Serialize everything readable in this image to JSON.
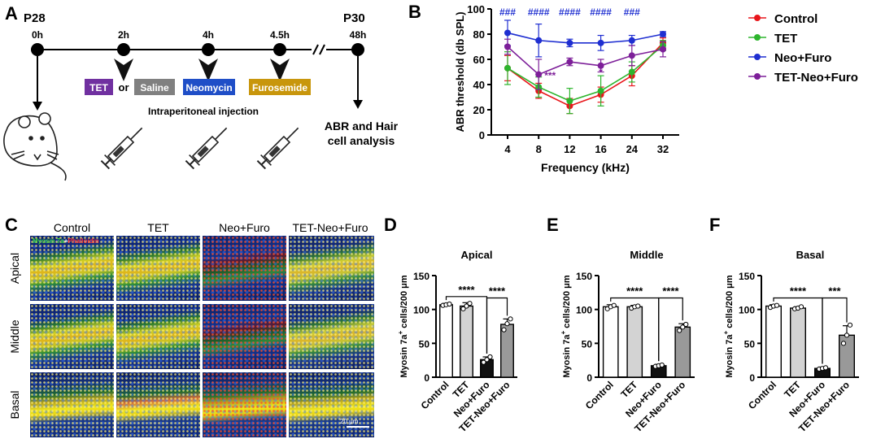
{
  "panel_labels": {
    "A": "A",
    "B": "B",
    "C": "C",
    "D": "D",
    "E": "E",
    "F": "F"
  },
  "timeline": {
    "start_label": "P28",
    "end_label": "P30",
    "timepoints": [
      "0h",
      "2h",
      "4h",
      "4.5h",
      "48h"
    ],
    "drugs": {
      "tet": "TET",
      "or": "or",
      "saline": "Saline",
      "neomycin": "Neomycin",
      "furosemide": "Furosemide"
    },
    "injection_label": "Intraperitoneal injection",
    "analysis_line1": "ABR and Hair",
    "analysis_line2": "cell analysis",
    "colors": {
      "tet": "#7030a0",
      "saline": "#808080",
      "neomycin": "#1f4ec7",
      "furosemide": "#c8960c"
    }
  },
  "micrographs": {
    "columns": [
      "Control",
      "TET",
      "Neo+Furo",
      "TET-Neo+Furo"
    ],
    "rows": [
      "Apical",
      "Middle",
      "Basal"
    ],
    "stain_green": "Myosin 7a",
    "stain_plus": "+",
    "stain_red": "Phalloidin",
    "scale_bar": "20 μm"
  },
  "chart_data": [
    {
      "panel": "B",
      "type": "line",
      "title": "",
      "xlabel": "Frequency (kHz)",
      "ylabel": "ABR threshold (db SPL)",
      "categories": [
        "4",
        "8",
        "12",
        "16",
        "24",
        "32"
      ],
      "ylim": [
        0,
        100
      ],
      "yticks": [
        "0",
        "20",
        "40",
        "60",
        "80",
        "100"
      ],
      "legend_position": "right",
      "series": [
        {
          "name": "Control",
          "color": "#e8161b",
          "values": [
            53,
            35,
            23,
            32,
            47,
            73
          ],
          "errors": [
            10,
            6,
            6,
            6,
            8,
            4
          ]
        },
        {
          "name": "TET",
          "color": "#2db52d",
          "values": [
            53,
            38,
            27,
            35,
            50,
            71
          ],
          "errors": [
            13,
            8,
            10,
            12,
            8,
            4
          ]
        },
        {
          "name": "Neo+Furo",
          "color": "#1f2fd1",
          "values": [
            81,
            75,
            73,
            73,
            75,
            80
          ],
          "errors": [
            10,
            13,
            3,
            6,
            4,
            2
          ]
        },
        {
          "name": "TET-Neo+Furo",
          "color": "#7d1f99",
          "values": [
            70,
            48,
            58,
            55,
            63,
            68
          ],
          "errors": [
            6,
            12,
            3,
            5,
            8,
            6
          ]
        }
      ],
      "annotations_top": [
        "###",
        "####",
        "####",
        "####",
        "###"
      ],
      "annotations_top_x": [
        "4",
        "8",
        "12",
        "16",
        "24"
      ],
      "annotations_mid": [
        {
          "x": "8",
          "text": "***"
        },
        {
          "x": "16",
          "text": "*"
        }
      ]
    },
    {
      "panel": "D",
      "type": "bar",
      "title": "Apical",
      "ylabel_prefix": "Myosin 7a",
      "ylabel_sup": "+",
      "ylabel_suffix": " cells/200 μm",
      "categories": [
        "Control",
        "TET",
        "Neo+Furo",
        "TET-Neo+Furo"
      ],
      "values": [
        107,
        105,
        26,
        78
      ],
      "errors": [
        2,
        5,
        4,
        8
      ],
      "points": [
        [
          106,
          107,
          108
        ],
        [
          101,
          105,
          109
        ],
        [
          22,
          26,
          30
        ],
        [
          70,
          79,
          86
        ]
      ],
      "bar_colors": [
        "#ffffff",
        "#d3d3d3",
        "#111111",
        "#999999"
      ],
      "ylim": [
        0,
        150
      ],
      "yticks": [
        "0",
        "50",
        "100",
        "150"
      ],
      "significance": [
        "****",
        "****"
      ]
    },
    {
      "panel": "E",
      "type": "bar",
      "title": "Middle",
      "ylabel_prefix": "Myosin 7a",
      "ylabel_sup": "+",
      "ylabel_suffix": " cells/200 μm",
      "categories": [
        "Control",
        "TET",
        "Neo+Furo",
        "TET-Neo+Furo"
      ],
      "values": [
        104,
        104,
        17,
        74
      ],
      "errors": [
        3,
        2,
        2,
        5
      ],
      "points": [
        [
          101,
          104,
          106
        ],
        [
          102,
          104,
          105
        ],
        [
          16,
          17,
          18
        ],
        [
          69,
          74,
          78
        ]
      ],
      "bar_colors": [
        "#ffffff",
        "#d3d3d3",
        "#111111",
        "#999999"
      ],
      "ylim": [
        0,
        150
      ],
      "yticks": [
        "0",
        "50",
        "100",
        "150"
      ],
      "significance": [
        "****",
        "****"
      ]
    },
    {
      "panel": "F",
      "type": "bar",
      "title": "Basal",
      "ylabel_prefix": "Myosin 7a",
      "ylabel_sup": "+",
      "ylabel_suffix": " cells/200 μm",
      "categories": [
        "Control",
        "TET",
        "Neo+Furo",
        "TET-Neo+Furo"
      ],
      "values": [
        105,
        102,
        13,
        62
      ],
      "errors": [
        2,
        2,
        2,
        14
      ],
      "points": [
        [
          103,
          105,
          106
        ],
        [
          101,
          102,
          104
        ],
        [
          12,
          13,
          14
        ],
        [
          50,
          62,
          77
        ]
      ],
      "bar_colors": [
        "#ffffff",
        "#d3d3d3",
        "#111111",
        "#999999"
      ],
      "ylim": [
        0,
        150
      ],
      "yticks": [
        "0",
        "50",
        "100",
        "150"
      ],
      "significance": [
        "****",
        "***"
      ]
    }
  ]
}
